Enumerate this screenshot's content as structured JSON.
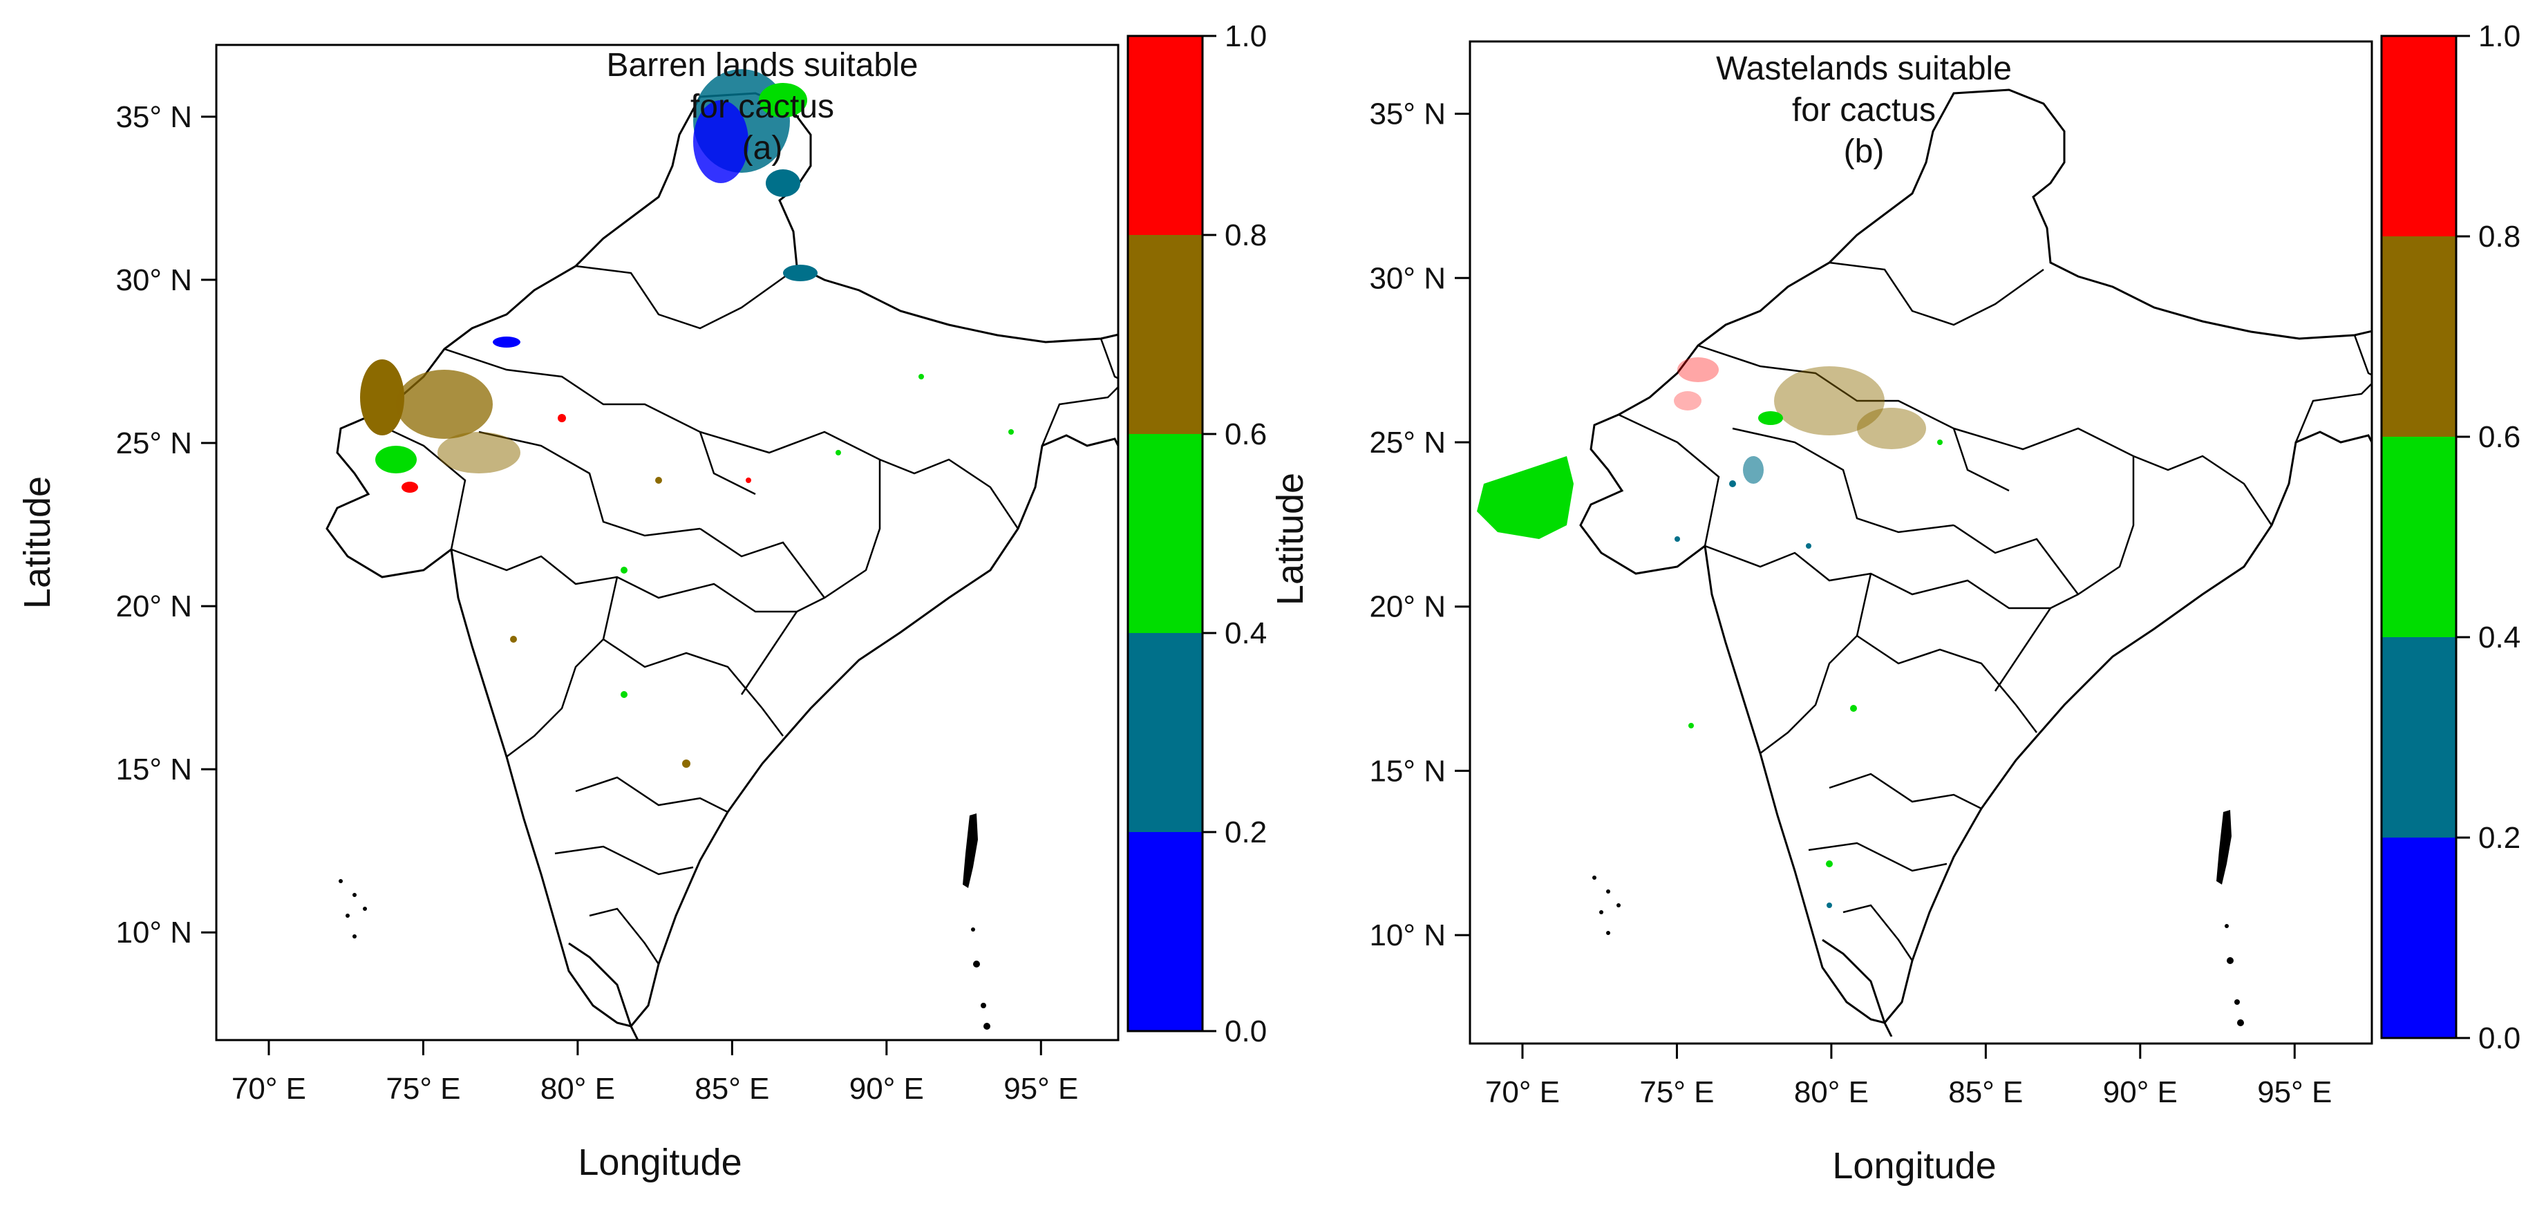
{
  "panels": [
    {
      "id": "a",
      "title_lines": [
        "Barren lands suitable",
        "for cactus",
        "(a)"
      ],
      "xlabel": "Longitude",
      "ylabel": "Latitude",
      "x_ticks": [
        "70° E",
        "75° E",
        "80° E",
        "85° E",
        "90° E",
        "95° E"
      ],
      "y_ticks": [
        "35° N",
        "30° N",
        "25° N",
        "20° N",
        "15° N",
        "10° N"
      ],
      "colorbar_ticks": [
        "1.0",
        "0.8",
        "0.6",
        "0.4",
        "0.2",
        "0.0"
      ]
    },
    {
      "id": "b",
      "title_lines": [
        "Wastelands suitable",
        "for cactus",
        "(b)"
      ],
      "xlabel": "Longitude",
      "ylabel": "Latitude",
      "x_ticks": [
        "70° E",
        "75° E",
        "80° E",
        "85° E",
        "90° E",
        "95° E"
      ],
      "y_ticks": [
        "35° N",
        "30° N",
        "25° N",
        "20° N",
        "15° N",
        "10° N"
      ],
      "colorbar_ticks": [
        "1.0",
        "0.8",
        "0.6",
        "0.4",
        "0.2",
        "0.0"
      ]
    }
  ],
  "map": {
    "lon_range": [
      68.3,
      97.5
    ],
    "lat_range": [
      6.7,
      37.2
    ],
    "colorbar_classes": [
      {
        "range": [
          0.0,
          0.2
        ],
        "color": "#0000ff"
      },
      {
        "range": [
          0.2,
          0.4
        ],
        "color": "#00708a"
      },
      {
        "range": [
          0.4,
          0.6
        ],
        "color": "#00dd00"
      },
      {
        "range": [
          0.6,
          0.8
        ],
        "color": "#8c6a00"
      },
      {
        "range": [
          0.8,
          1.0
        ],
        "color": "#ff0000"
      }
    ]
  }
}
